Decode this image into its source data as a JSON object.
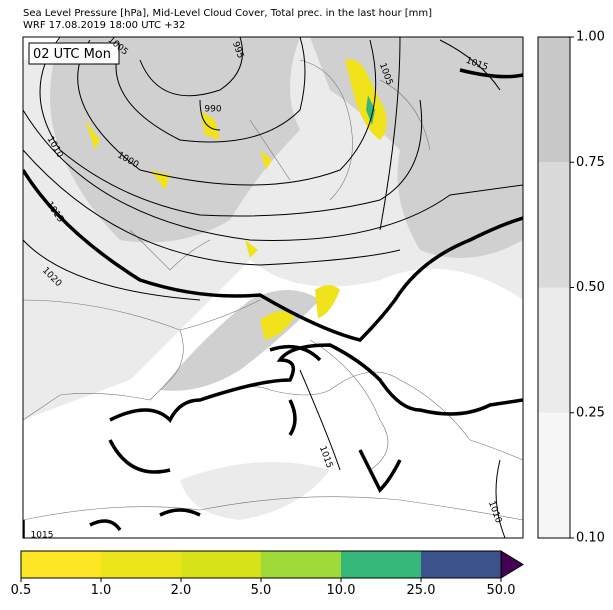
{
  "header": {
    "title": "Sea Level Pressure [hPa], Mid-Level Cloud Cover, Total prec. in the last hour [mm]",
    "subtitle": "WRF 17.08.2019 18:00 UTC +32"
  },
  "map": {
    "time_label": "02 UTC Mon",
    "isobar_labels": [
      "1005",
      "995",
      "1005",
      "1015",
      "990",
      "1000",
      "1010",
      "1015",
      "1020",
      "1015",
      "1010",
      "1015"
    ]
  },
  "cloud_colorbar": {
    "ticks": [
      "0.10",
      "0.25",
      "0.50",
      "0.75",
      "1.00"
    ],
    "colors": [
      "#f7f7f7",
      "#ebebeb",
      "#dadada",
      "#c8c8c8"
    ]
  },
  "precip_colorbar": {
    "ticks": [
      "0.5",
      "1.0",
      "2.0",
      "5.0",
      "10.0",
      "25.0",
      "50.0"
    ],
    "colors": [
      "#fde725",
      "#ede51b",
      "#d8e219",
      "#a0da39",
      "#35b779",
      "#3b528b"
    ],
    "extend_color": "#440154"
  }
}
